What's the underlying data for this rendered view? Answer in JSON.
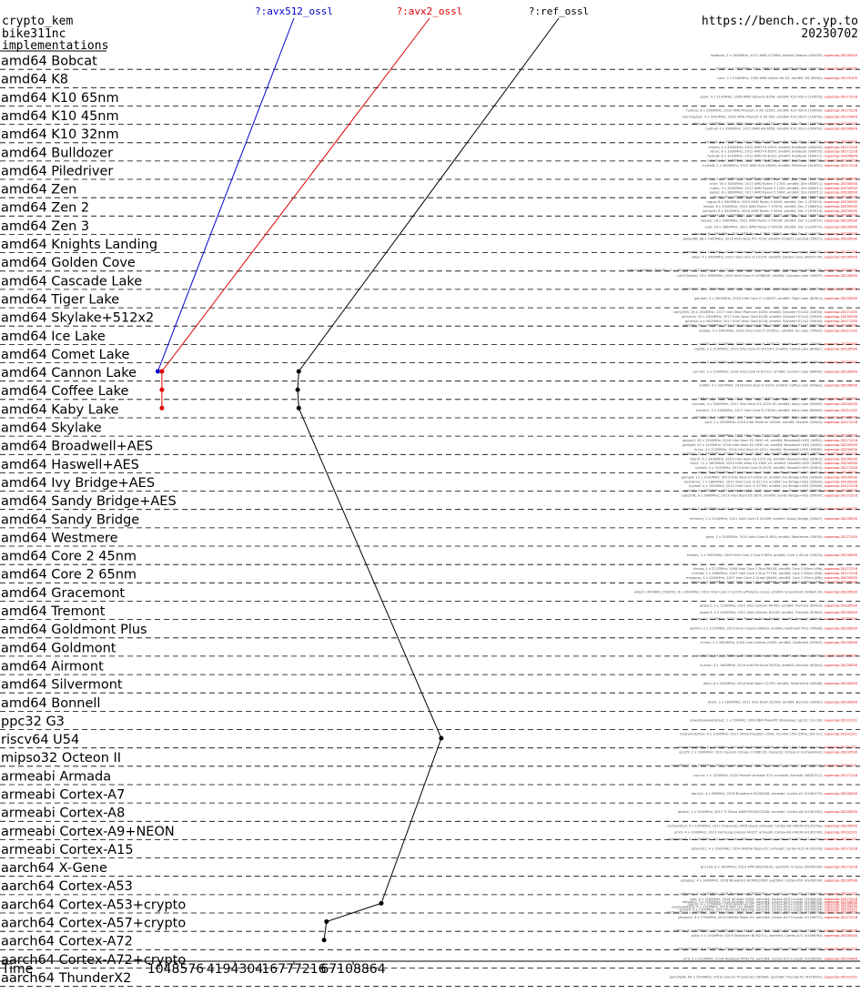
{
  "header": {
    "left_lines": [
      "crypto_kem",
      "bike311nc",
      "implementations"
    ],
    "right_lines": [
      "https://bench.cr.yp.to",
      "20230702"
    ]
  },
  "colors": {
    "avx512_ossl": "#0000cc",
    "avx2_ossl": "#dd0000",
    "ref_ossl": "#000000",
    "date_red": "#dd0000"
  },
  "chart_data": {
    "type": "line",
    "xlabel": "Time",
    "x_scale": "log",
    "x_ticks": [
      1048576,
      4194304,
      16777216,
      67108864
    ],
    "grid": "dashed rows",
    "series": [
      {
        "name": "?:avx512_ossl",
        "color": "#0000cc",
        "points": [
          {
            "row": "amd64 Cannon Lake",
            "x": 690000
          }
        ]
      },
      {
        "name": "?:avx2_ossl",
        "color": "#dd0000",
        "points": [
          {
            "row": "amd64 Cannon Lake",
            "x": 760000
          },
          {
            "row": "amd64 Coffee Lake",
            "x": 760000
          },
          {
            "row": "amd64 Kaby Lake",
            "x": 760000
          }
        ]
      },
      {
        "name": "?:ref_ossl",
        "color": "#000000",
        "points": [
          {
            "row": "amd64 Cannon Lake",
            "x": 18800000
          },
          {
            "row": "amd64 Coffee Lake",
            "x": 18300000
          },
          {
            "row": "amd64 Kaby Lake",
            "x": 18800000
          },
          {
            "row": "riscv64 U54",
            "x": 530000000
          },
          {
            "row": "aarch64 Cortex-A53+crypto",
            "x": 130000000
          },
          {
            "row": "aarch64 Cortex-A57+crypto",
            "x": 36000000
          },
          {
            "row": "aarch64 Cortex-A72",
            "x": 34000000
          }
        ]
      }
    ],
    "rows": [
      {
        "label": "amd64 Bobcat",
        "notes": [
          "bbobcat; 2 x 1600MHz; 2011 AMD G-T56N; amd64; Bobcat (500f20); supercop-20230530",
          "hiad0r; 2 x 1650MHz; 2011 AMD E-450; amd64; Bobcat (500f20); supercop-20230530"
        ]
      },
      {
        "label": "amd64 K8",
        "notes": [
          "nocr; 2 x 2500MHz; 2006 AMD Athlon 64 X2; amd64; K8 (60fb2); supercop-20170105"
        ]
      },
      {
        "label": "amd64 K10 65nm",
        "notes": [
          "goxh; 4 x 2100MHz; 2008 AMD Opteron 8354; amd64; K10 65nm (100f23); supercop-20171218"
        ]
      },
      {
        "label": "amd64 K10 45nm",
        "notes": [
          "hydra2; 6 x 3300MHz; 2010 AMD Phenom II X6 1100T; amd64; K10 45nm (100fa0); supercop-20171218",
          "morningstar; 4 x 3200MHz; 2009 AMD Phenom II X4 955; amd64; K10 45nm (100f43); supercop-20170904",
          "rlfiex; 6 x 1700MHz; 2010 AMD Athlon II Neo K125; amd64; K10 45nm (100f63); supercop-20170105"
        ]
      },
      {
        "label": "amd64 K10 32nm",
        "notes": [
          "hydra4; 4 x 2900MHz; 2011 AMD A8-3850; amd64; K10 32nm (300f10); supercop-20200826",
          "hydra3; 4 x 2900MHz; 2011 AMD A8-3850; amd64; K10 32nm (300f10); supercop-20200826"
        ]
      },
      {
        "label": "amd64 Bulldozer",
        "notes": [
          "hrdom; 4 x 3300MHz; 2012 AMD FX-4350; amd64; Bulldozer (600f20); supercop-20171218",
          "vdrov; 6 x 3300MHz; 2012 AMD FX-6350; amd64; Bulldozer (600f20); supercop-20171218",
          "hydra6; 8 x 3100MHz; 2012 AMD FX-8120; amd64; Bulldozer (600f12); supercop-20200826",
          "sabeha; 8 x 3300MHz; 2012 AMD FX-8320; amd64; Bulldozer (600f20); supercop-20171218"
        ]
      },
      {
        "label": "amd64 Piledriver",
        "notes": [
          "hydra8; 2 x 3800MHz; 2012 AMD A10-5800K; amd64; Piledriver (610f01); supercop-20171218",
          "hfenix; 2 x 3500MHz; 2012 AMD A10-6800K; amd64; Piledriver (610f31); supercop-20230530"
        ]
      },
      {
        "label": "amd64 Zen",
        "notes": [
          "hrdv; 16 x 3400MHz; 2017 AMD Ryzen 7 1700; amd64; Zen (800f11); supercop-20230530",
          "rubex; 4 x 3200MHz; 2017 AMD Ryzen 3 1200; amd64; Zen (800f11); supercop-20230530",
          "pallas; 8 x 3600MHz; 2017 AMD Ryzen 5 1600; amd64; Zen (800f11); supercop-20230530",
          "thorn; 32 x 2200MHz; 2017 AMD EPYC 7551; amd64; Zen (800f12); supercop-20230530"
        ]
      },
      {
        "label": "amd64 Zen 2",
        "notes": [
          "rogue; 8 x 3600MHz; 2019 AMD Ryzen 5 3600; amd64; Zen 2 (870f10); supercop-20230530",
          "nessie; 8 x 3000MHz; 2020 AMD Ryzen 7 4700U; amd64; Zen 2 (860f01); supercop-20230530",
          "vampire; 8 x 3500MHz; 2020 AMD Ryzen 5 3600; amd64; Zen 2 (870f10); supercop-20230530",
          "gamjokk; 64 x 2250MHz; 2019 AMD EPYC 7702; amd64; Zen 2 (830f10); supercop-20230530"
        ]
      },
      {
        "label": "amd64 Zen 3",
        "notes": [
          "twelve; 16 x 3400MHz; 2021 AMD Ryzen 9 5900X; amd64; Zen 3 (a20f10); supercop-20230530",
          "evel; 16 x 3800MHz; 2021 AMD Ryzen 9 5950X; amd64; Zen 3 (a20f10); supercop-20230530",
          "cassava; 6 x 3900MHz; 2021 AMD Ryzen 5 PRO 5650G; amd64; Zen 3 (a50f00); supercop-20230530"
        ]
      },
      {
        "label": "amd64 Knights Landing",
        "notes": [
          "gamjo66; 68 x 1400MHz; 2016 Intel Xeon Phi 7250; amd64; Knights Landing (50671); supercop-20230530",
          "gamjo64; 64 x 1300MHz; 2016 Intel Xeon Phi 7210; amd64; Knights Landing (50671); supercop-20171226"
        ]
      },
      {
        "label": "amd64 Golden Cove",
        "notes": [
          "alder; 4 x 3400MHz; 2022 Intel Core i3-12100; amd64; Golden Cove (90675-00); supercop-20230530",
          "alder2 (#00890_000000); 2 x 1600MHz; 2022 Intel Core i7-1215U performance cores; amd64; Golden Cove (906a4-00); supercop-20230530"
        ]
      },
      {
        "label": "amd64 Cascade Lake",
        "notes": [
          "cat013easkl; 18 x 3000MHz; 2019 Intel Core i9-10980XE; amd64; Cascade Lake (50657); supercop-20230530",
          "gemm076; 20 x 2500MHz; 2019 Intel Xeon Gold 6248; amd64; Cascade Lake (50657); supercop-20200816"
        ]
      },
      {
        "label": "amd64 Tiger Lake",
        "notes": [
          "gamber; 4 x 2800MHz; 2020 Intel Core i7-1165G7; amd64; Tiger Lake (806c1); supercop-20230530"
        ]
      },
      {
        "label": "amd64 Skylake+512x2",
        "notes": [
          "samy356; 28 x 2500MHz; 2017 Intel Xeon Platinum 8180; amd64; Skylake+512x2 (50654); supercop-20171105",
          "pinnacle; 20 x 2000MHz; 2017 Intel Xeon Gold 6138; amd64; Skylake+512x2 (50654); supercop-20230530",
          "ginsk4s; 4 x 4000MHz; 2017 Intel Xeon Gold 6128; amd64; Skylake+512x2 (50654); supercop-20171105",
          "ginsk4o; 40 x 2400MHz; 2017 Intel Xeon Gold 6148; amd64; Skylake+512x2 (50654); supercop-20230530"
        ]
      },
      {
        "label": "amd64 Ice Lake",
        "notes": [
          "icelake; 4 x 3300MHz; 2019 Intel Core i5-1035G1; amd64; Ice Lake (706e5); supercop-20221102",
          "cat03c; 4 x 1100MHz; 2020 Intel Core i5-1035G7; amd64; Ice Lake (706e5); supercop-20230530"
        ]
      },
      {
        "label": "amd64 Comet Lake",
        "notes": [
          "cabt0l; 2 x 2100MHz; 2019 Intel Core i3-10110U; amd64; Comet Lake (806ec); supercop-20230530",
          "comt; 2 x 2100MHz; 2019 Intel Core i3-10110U; amd64; Comet Lake (806ec); supercop-20230530"
        ]
      },
      {
        "label": "amd64 Cannon Lake",
        "notes": [
          "cannon; 2 x 2200MHz; 2018 Intel Core i3-8121U; amd64; Cannon Lake (60663); supercop-20230530"
        ]
      },
      {
        "label": "amd64 Coffee Lake",
        "notes": [
          "x2800; 4 x 3300MHz; 2018 Intel Xeon E-2224; amd64; Coffee Lake (906ea); supercop-20230530",
          "hiffran; 6 x 3000MHz; 2017 Intel Core i7-8700; amd64; Coffee Lake (906ea); supercop-20230530"
        ]
      },
      {
        "label": "amd64 Kaby Lake",
        "notes": [
          "hirundo; 4 x 3000MHz; 2017 Intel Xeon E3-1220 v6; amd64; Kaby Lake (906e9); supercop-20230530",
          "shenbur; 4 x 2400MHz; 2017 Intel Core i5-7300U; amd64; Kaby Lake (806e9); supercop-20221102",
          "cotadacyd; 4 x 3500MHz; 2017 Intel Core i7-7700; amd64; Kaby Lake (906e9); supercop-20230530"
        ]
      },
      {
        "label": "amd64 Skylake",
        "notes": [
          "saul; 2 x 3300MHz; 2016 Intel Pentium G4400; amd64; Skylake (506e3); supercop-20171218",
          "nabu; 4 x 3300MHz; 2015 Intel Xeon E3-1220 v5; amd64; Skylake (506e3); supercop-20230530"
        ]
      },
      {
        "label": "amd64 Broadwell+AES",
        "notes": [
          "gamjo5; 24 x 2200MHz; 2016 Intel Xeon E5-2650 v4; amd64; Broadwell+AES (406f1); supercop-20171218",
          "gamjo6; 20 x 2200MHz; 2016 Intel Xeon E5-2630 v4; amd64; Broadwell+AES (406f1); supercop-20230530",
          "hriuv; 4 x 2100MHz; 2016 Intel Xeon D-1521; amd64; Broadwell+AES (50663); supercop-20230530",
          "gamjo7; 12 x 2400MHz; 2016 Intel Xeon E5-2620 v4; amd64; Broadwell+AES (406f1); supercop-20171218"
        ]
      },
      {
        "label": "amd64 Haswell+AES",
        "notes": [
          "titan0; 4 x 3400MHz; 2013 Intel Xeon E3-1275 v3; amd64; Haswell+AES (306c3); supercop-20230530",
          "mzr2; 12 x 2600MHz; 2014 Intel Xeon E5-2690 v3; amd64; Haswell+AES (306f2); supercop-20230530",
          "hydra9; 4 x 3100MHz; 2013 Intel Core i5-4570; amd64; Haswell+AES (306c3); supercop-20171218",
          "samy; 8 x 3600MHz; 2013 Intel Core i7-4790; amd64; Haswell+AES (306c3); supercop-20230530"
        ]
      },
      {
        "label": "amd64 Ivy Bridge+AES",
        "notes": [
          "gamjo4; 12 x 2100MHz; 2013 Intel Xeon E5-2620 v2; amd64; Ivy Bridge+AES (306e4); supercop-20230530",
          "hydrafury; 2 x 1800MHz; 2012 Intel Core i3-3217U; amd64; Ivy Bridge+AES (306a9); supercop-20230530",
          "hydra8; 4 x 3500MHz; 2012 Intel Core i7-3770K; amd64; Ivy Bridge+AES (306a9); supercop-20171218",
          "hydra7; 4 x 3200MHz; 2012 Intel Xeon E3-1225 v2; amd64; Ivy Bridge+AES (306a9); supercop-20230530"
        ]
      },
      {
        "label": "amd64 Sandy Bridge+AES",
        "notes": [
          "cabo206; 8 x 2600MHz; 2013 Intel Xeon E5-2650; amd64; Sandy Bridge+AES (206d7); supercop-20171218",
          "hydra2; 4 x 3100MHz; 2011 Intel Xeon E3-1220; amd64; Sandy Bridge+AES (206a7); supercop-20230530"
        ]
      },
      {
        "label": "amd64 Sandy Bridge",
        "notes": [
          "hfmadry; 2 x 2100MHz; 2011 Intel Core i3-2310M; amd64; Sandy Bridge (206a7); supercop-20230530"
        ]
      },
      {
        "label": "amd64 Westmere",
        "notes": [
          "gjsm; 2 x 3200MHz; 2010 Intel Core i5-650; amd64; Westmere (20655); supercop-20171105"
        ]
      },
      {
        "label": "amd64 Core 2 45nm",
        "notes": [
          "wilduts; 2 x 3000MHz; 2009 Intel Core 2 Duo E7600; amd64; Core 2 45nm (1067a); supercop-20230530"
        ]
      },
      {
        "label": "amd64 Core 2 65nm",
        "notes": [
          "hinsss; 2 x 2137MHz; 2008 Intel Core 2 Duo E6420; amd64; Core 2 65nm (6fb); supercop-20171218",
          "nrimab; 2 x 2660MHz; 2007 Intel Core 2 Duo T7700; amd64; Core 2 65nm (6fb); supercop-20171218",
          "margaux; 4 x 2400MHz; 2007 Intel Core 2 Quad Q6600; amd64; Core 2 65nm (6fb); supercop-20230530",
          "tetras; 4 x 2400MHz; 2007 Intel Core 2 Quad Q6600; amd64; Core 2 65nm (6fb); supercop-20230530"
        ]
      },
      {
        "label": "amd64 Gracemont",
        "notes": [
          "alder2 (#00890_150000); 8 x 1600MHz; 2022 Intel Core i7-1215U efficiency cores; amd64; Gracemont (906a4-20); supercop-20230530"
        ]
      },
      {
        "label": "amd64 Tremont",
        "notes": [
          "jasper2; 2 x 1100MHz; 2021 Intel Celeron N4500; amd64; Tremont (906c0); supercop-20230530",
          "jasper3; 4 x 2000MHz; 2021 Intel Celeron N5105; amd64; Tremont (906c0); supercop-20230530",
          "jaspar; 4 x 1100MHz; 2021 Intel Pentium Silver N6000; amd64; Tremont (906c0); supercop-20230530"
        ]
      },
      {
        "label": "amd64 Goldmont Plus",
        "notes": [
          "gemini; 2 x 1100MHz; 2019 Intel Celeron N4020; amd64; Goldmont Plus (706a8); supercop-20230530"
        ]
      },
      {
        "label": "amd64 Goldmont",
        "notes": [
          "cirrfax; 4 x 1600MHz; 2016 Intel Celeron J3455; amd64; Goldmont (506c9); supercop-20230530",
          "soufol1ss; 16 x 2100MHz; 2017 Intel Atom C3955; amd64; Goldmont (506f1); supercop-20230530"
        ]
      },
      {
        "label": "amd64 Airmont",
        "notes": [
          "nucsoc; 4 x 1600MHz; 2016 Intel Pentium N3700; amd64; Airmont (406c4); supercop-20230530"
        ]
      },
      {
        "label": "amd64 Silvermont",
        "notes": [
          "dairy; 8 x 2400MHz; 2016 Intel Atom C2750; amd64; Silvermont (406d8); supercop-20230530"
        ]
      },
      {
        "label": "amd64 Bonnell",
        "notes": [
          "Atom; 2 x 1600MHz; 2011 Intel Atom D2500; amd64; Bonnell (30661); supercop-20230530"
        ]
      },
      {
        "label": "ppc32 G3",
        "notes": [
          "powerbookwallstreet; 1 x 726MHz; 2009 IBM PowerPC Broadway; ppc32; G3 (93); supercop-20191221"
        ]
      },
      {
        "label": "riscv64 U54",
        "notes": [
          "icestarkdenton; 4 x 1000MHz; 2017 SiFive Freedom U540; riscv64; U54 (sifive,u54-mc); supercop-20191221",
          "icestarklawbo60; 4 x 1500MHz; 2017 SiFive Freedom U540; riscv64; U54 (sifive,u54-mc); supercop-20191221"
        ]
      },
      {
        "label": "mipso32 Octeon II",
        "notes": [
          "gco35; 2 x 1000MHz; 2011 Cavium Octeon II CN6120; mipso32; Octeon II (cnmpx64v2); supercop-20230530",
          "erproffle01; 2 x 1000MHz; 2011 Cavium Octeon II CN6120; mipso32; Octeon II (cnmpx64v2); supercop-20191221"
        ]
      },
      {
        "label": "armeabi Armada",
        "notes": [
          "cuculu; 1 x 1200MHz; 2020 Marvell Armada 370; armeabi; Armada (560f2311); supercop-20171218"
        ]
      },
      {
        "label": "armeabi Cortex-A7",
        "notes": [
          "banry2; 4 x 900MHz; 2016 Broadcom BCM2836; armeabi; Cortex-A7 (410fc075); supercop-20230530"
        ]
      },
      {
        "label": "armeabi Cortex-A8",
        "notes": [
          "bblack; 1 x 1000MHz; 2012 TI Sitara XAM3359AZCZ100; armeabi; Cortex-A8 (413fc082); supercop-20230530"
        ]
      },
      {
        "label": "armeabi Cortex-A9+NEON",
        "notes": [
          "cortexarbus; 4 x 1000MHz; 2011 Freescale i.MX6 Quad; armeabi; Cortex-A9+NEON (412fc09a); supercop-20230530",
          "arrck; 4 x 1000MHz; 2013 Samsung Exynos 4412T; armeabi; Cortex-A9+NEON (413fc090); supercop-20191221",
          "cortexabert; 4 x 1000MHz; 2011 Freescale i.MX6 Quad; armeabi; Cortex-A9+NEON (412fc09a); supercop-20191221"
        ]
      },
      {
        "label": "armeabi Cortex-A15",
        "notes": [
          "jetsontk1; 4 x 2000MHz; 2014 NVIDIA Tegra K1; armeabi; Cortex-A15 (413fc0f3); supercop-20171218"
        ]
      },
      {
        "label": "aarch64 X-Gene",
        "notes": [
          "gcc116; 8 x 1600MHz; 2014 APM 883208-X1; aarch64; X-Gene (500f0000); supercop-20171218"
        ]
      },
      {
        "label": "aarch64 Cortex-A53",
        "notes": [
          "pi3aplus; 4 x 1400MHz; 2018 Broadcom BCM2837B0; aarch64; Cortex-A53 (410fd034); supercop-20230530",
          "pi3bplus; 4 x 1400MHz; 2018 Broadcom BCM2837B0; aarch64; Cortex-A53 (410fd034); supercop-20221102"
        ]
      },
      {
        "label": "aarch64 Cortex-A53+crypto",
        "notes": [
          "sipll; 4 x 1200MHz; 2016 Amlogic S905; aarch64; Cortex-A53+crypto (410fd034); supercop-20171218",
          "odroidc2; 4 x 1500MHz; 2016 Amlogic S905; aarch64; Cortex-A53+crypto (410fd034); supercop-20230530",
          "tigerpi; 4 x 1200MHz; 2016 Allwinner H5; aarch64; Cortex-A53+crypto (410fd034); supercop-20230530",
          "quarkabidebil; 4 x 1200MHz; 2016 NXP LS1 MX8M; aarch64; Cortex-A53+crypto (410fd034); supercop-20230530",
          "rockpi4; 4 x 1500MHz; 2017 Rockchip RK3328; aarch64; Cortex-A53+crypto (410fd034); supercop-20191221",
          "cortexa53; 4 x 1800MHz; 2017 Freescale i.MX8 Quad; aarch64; Cortex-A53+crypto (410fd034); supercop-20230530"
        ]
      },
      {
        "label": "aarch64 Cortex-A57+crypto",
        "notes": [
          "jetsonnx; 4 x 1700MHz; 2015 NVIDIA Tegra X1; aarch64; Cortex-A57+crypto (411fd071); supercop-20171218",
          "softiron; 8 x 2000MHz; 2016 AMD Opteron A1100; aarch64; Cortex-A57+crypto (411fd072); supercop-20230530"
        ]
      },
      {
        "label": "aarch64 Cortex-A72",
        "notes": [
          "pi4b; 4 x 1500MHz; 2019 Broadcom BCM2711; aarch64; Cortex-A72 (410fd083); supercop-20230530",
          "rpi4ubuntu22; 4 x 1500MHz; 2019 Broadcom BCM2711; aarch64; Cortex-A72 (410fd083); supercop-20221102"
        ]
      },
      {
        "label": "aarch64 Cortex-A72+crypto",
        "notes": [
          "a73; 2 x 2100MHz; 2018 Mediatek MT8173; aarch64; Cortex-A72+crypto (410fd080); supercop-20170904"
        ]
      },
      {
        "label": "aarch64 ThunderX2",
        "notes": [
          "gamcfoxR; 64 x 2500MHz; 2018 Cavium ThunderX2 CN9980; aarch64; ThunderX2 (431f0af1); supercop-20191221"
        ]
      }
    ]
  }
}
